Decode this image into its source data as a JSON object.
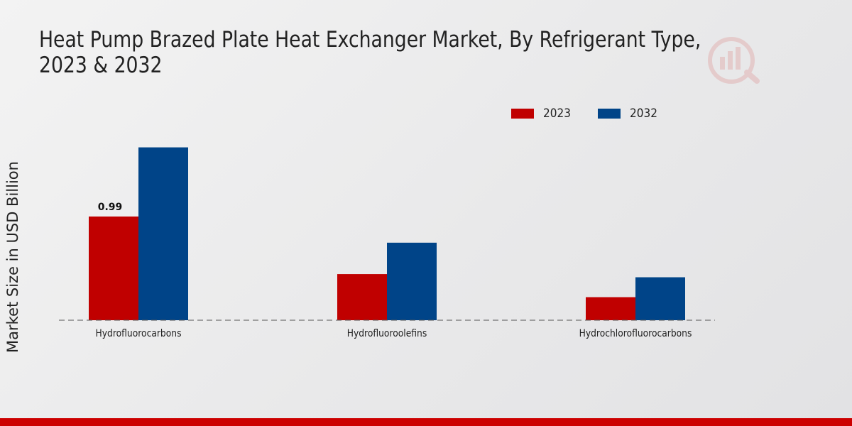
{
  "chart_data": {
    "type": "bar",
    "title": "Heat Pump Brazed Plate Heat Exchanger Market, By Refrigerant Type, 2023 & 2032",
    "xlabel": "",
    "ylabel": "Market Size in USD Billion",
    "categories": [
      "Hydrofluorocarbons",
      "Hydrofluoroolefins",
      "Hydrochlorofluorocarbons"
    ],
    "series": [
      {
        "name": "2023",
        "color": "#c00000",
        "values": [
          0.99,
          0.44,
          0.22
        ]
      },
      {
        "name": "2032",
        "color": "#004488",
        "values": [
          1.65,
          0.74,
          0.41
        ]
      }
    ],
    "data_labels": [
      {
        "series": "2023",
        "category": "Hydrofluorocarbons",
        "text": "0.99"
      }
    ],
    "ylim": [
      0,
      1.8
    ],
    "grid": false,
    "legend_position": "top-right"
  },
  "colors": {
    "footer": "#cc0000",
    "axis": "#555555",
    "text": "#222222"
  }
}
